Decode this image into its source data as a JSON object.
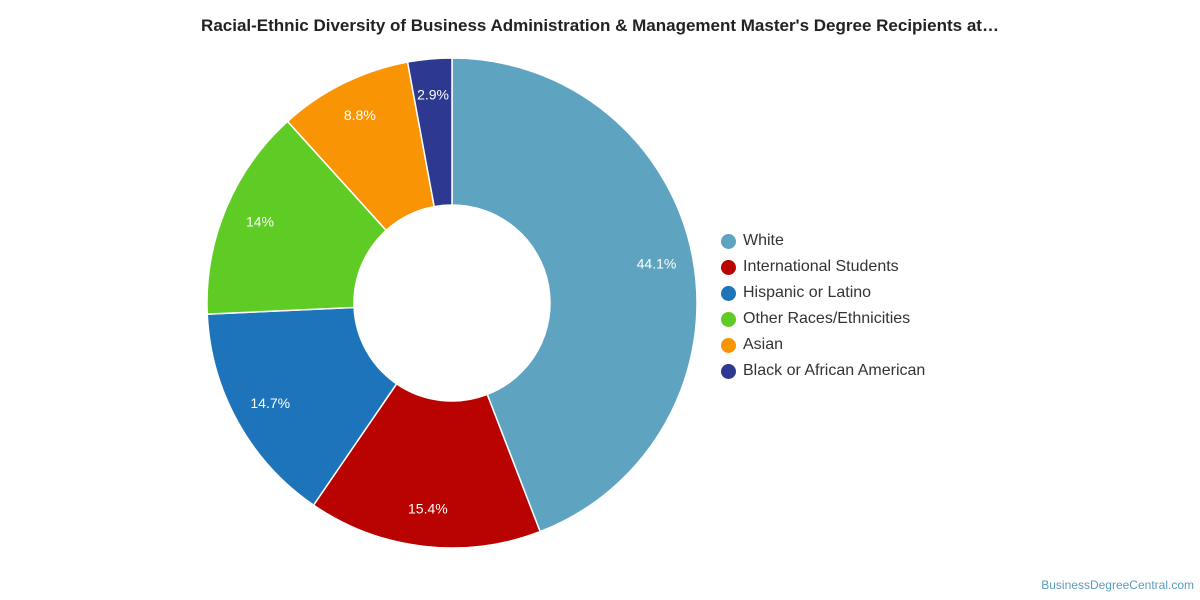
{
  "chart_data": {
    "type": "pie",
    "style": "donut",
    "title": "Racial-Ethnic Diversity of Business Administration & Management Master's Degree Recipients at…",
    "legend_position": "right",
    "slices": [
      {
        "name": "White",
        "value": 44.1,
        "label": "44.1%",
        "color": "#5ea3c0"
      },
      {
        "name": "International Students",
        "value": 15.4,
        "label": "15.4%",
        "color": "#b80300"
      },
      {
        "name": "Hispanic or Latino",
        "value": 14.7,
        "label": "14.7%",
        "color": "#1e74ba"
      },
      {
        "name": "Other Races/Ethnicities",
        "value": 14,
        "label": "14%",
        "color": "#5fcc25"
      },
      {
        "name": "Asian",
        "value": 8.8,
        "label": "8.8%",
        "color": "#f99405"
      },
      {
        "name": "Black or African American",
        "value": 2.9,
        "label": "2.9%",
        "color": "#2d3990"
      }
    ]
  },
  "watermark": "BusinessDegreeCentral.com"
}
